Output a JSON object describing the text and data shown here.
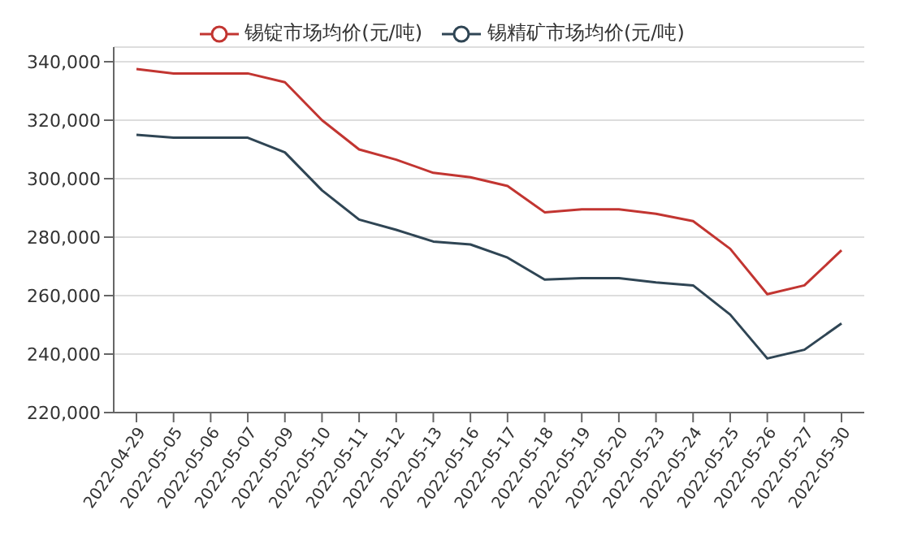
{
  "chart_data": {
    "type": "line",
    "categories": [
      "2022-04-29",
      "2022-05-05",
      "2022-05-06",
      "2022-05-07",
      "2022-05-09",
      "2022-05-10",
      "2022-05-11",
      "2022-05-12",
      "2022-05-13",
      "2022-05-16",
      "2022-05-17",
      "2022-05-18",
      "2022-05-19",
      "2022-05-20",
      "2022-05-23",
      "2022-05-24",
      "2022-05-25",
      "2022-05-26",
      "2022-05-27",
      "2022-05-30"
    ],
    "series": [
      {
        "name": "锡锭市场均价(元/吨)",
        "color": "#c23531",
        "values": [
          337500,
          336000,
          336000,
          336000,
          333000,
          320000,
          310000,
          306500,
          302000,
          300500,
          297500,
          288500,
          289500,
          289500,
          288000,
          285500,
          276000,
          260500,
          263500,
          275500
        ]
      },
      {
        "name": "锡精矿市场均价(元/吨)",
        "color": "#2f4554",
        "values": [
          315000,
          314000,
          314000,
          314000,
          309000,
          296000,
          286000,
          282500,
          278500,
          277500,
          273000,
          265500,
          266000,
          266000,
          264500,
          263500,
          253500,
          238500,
          241500,
          250500
        ]
      }
    ],
    "ylim": [
      220000,
      345000
    ],
    "yticks": [
      {
        "value": 220000,
        "label": "220,000"
      },
      {
        "value": 240000,
        "label": "240,000"
      },
      {
        "value": 260000,
        "label": "260,000"
      },
      {
        "value": 280000,
        "label": "280,000"
      },
      {
        "value": 300000,
        "label": "300,000"
      },
      {
        "value": 320000,
        "label": "320,000"
      },
      {
        "value": 340000,
        "label": "340,000"
      }
    ],
    "grid": "y",
    "legend": "top",
    "marker": "none",
    "line_style": "solid"
  }
}
